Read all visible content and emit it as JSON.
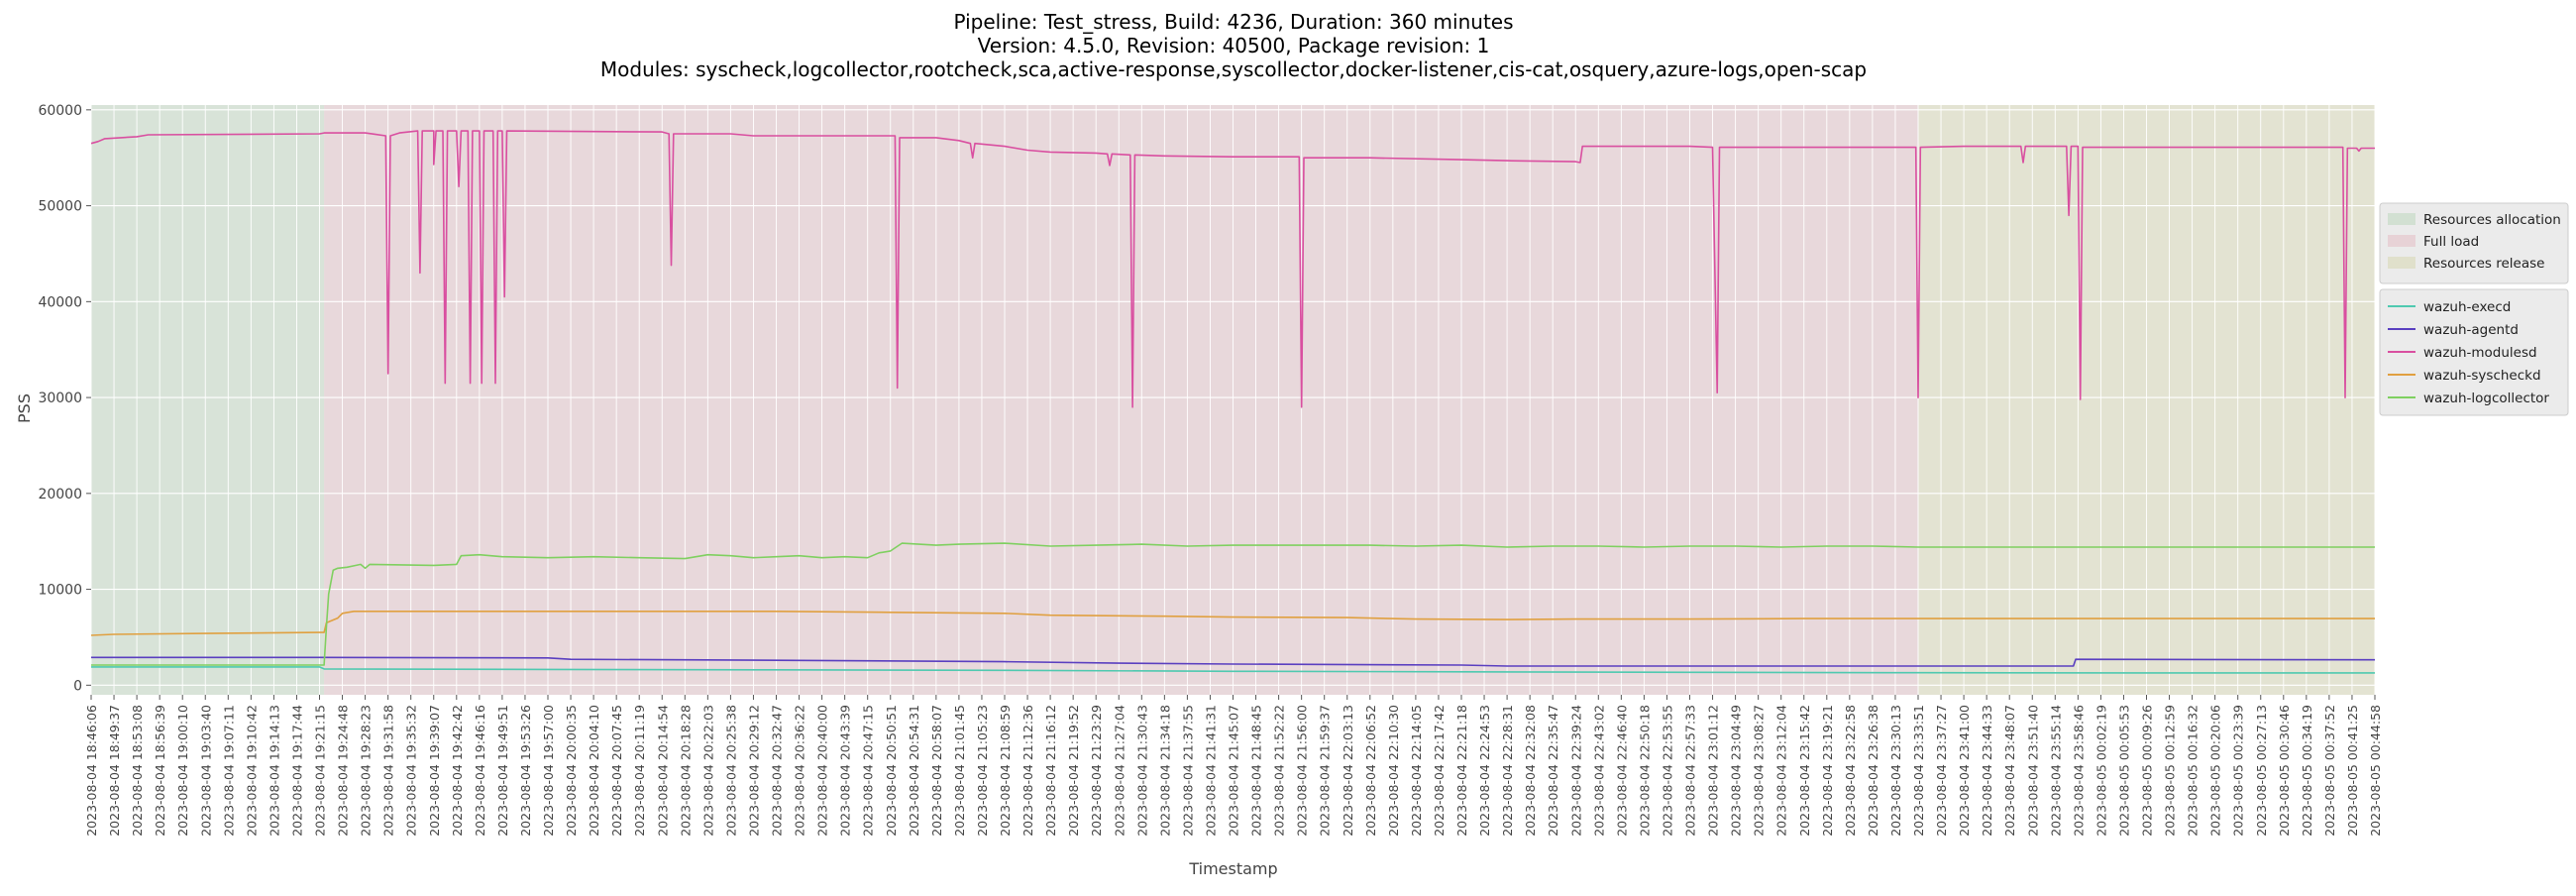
{
  "chart_data": {
    "type": "line",
    "title_lines": [
      "Pipeline: Test_stress, Build: 4236, Duration: 360 minutes",
      "Version: 4.5.0, Revision: 40500, Package revision: 1",
      "Modules: syscheck,logcollector,rootcheck,sca,active-response,syscollector,docker-listener,cis-cat,osquery,azure-logs,open-scap"
    ],
    "xlabel": "Timestamp",
    "ylabel": "PSS",
    "ylim": [
      -1000,
      60500
    ],
    "yticks": [
      0,
      10000,
      20000,
      30000,
      40000,
      50000,
      60000
    ],
    "grid": true,
    "legend_placement": "right",
    "phases": [
      {
        "name": "Resources allocation",
        "start": 0,
        "end": 0.102,
        "color": "#c8dcc8"
      },
      {
        "name": "Full load",
        "start": 0.102,
        "end": 0.8,
        "color": "#e6c8cd"
      },
      {
        "name": "Resources release",
        "start": 0.8,
        "end": 1.0,
        "color": "#dcdcbe"
      }
    ],
    "x_tick_labels": [
      "2023-08-04 18:46:06",
      "2023-08-04 18:49:37",
      "2023-08-04 18:53:08",
      "2023-08-04 18:56:39",
      "2023-08-04 19:00:10",
      "2023-08-04 19:03:40",
      "2023-08-04 19:07:11",
      "2023-08-04 19:10:42",
      "2023-08-04 19:14:13",
      "2023-08-04 19:17:44",
      "2023-08-04 19:21:15",
      "2023-08-04 19:24:48",
      "2023-08-04 19:28:23",
      "2023-08-04 19:31:58",
      "2023-08-04 19:35:32",
      "2023-08-04 19:39:07",
      "2023-08-04 19:42:42",
      "2023-08-04 19:46:16",
      "2023-08-04 19:49:51",
      "2023-08-04 19:53:26",
      "2023-08-04 19:57:00",
      "2023-08-04 20:00:35",
      "2023-08-04 20:04:10",
      "2023-08-04 20:07:45",
      "2023-08-04 20:11:19",
      "2023-08-04 20:14:54",
      "2023-08-04 20:18:28",
      "2023-08-04 20:22:03",
      "2023-08-04 20:25:38",
      "2023-08-04 20:29:12",
      "2023-08-04 20:32:47",
      "2023-08-04 20:36:22",
      "2023-08-04 20:40:00",
      "2023-08-04 20:43:39",
      "2023-08-04 20:47:15",
      "2023-08-04 20:50:51",
      "2023-08-04 20:54:31",
      "2023-08-04 20:58:07",
      "2023-08-04 21:01:45",
      "2023-08-04 21:05:23",
      "2023-08-04 21:08:59",
      "2023-08-04 21:12:36",
      "2023-08-04 21:16:12",
      "2023-08-04 21:19:52",
      "2023-08-04 21:23:29",
      "2023-08-04 21:27:04",
      "2023-08-04 21:30:43",
      "2023-08-04 21:34:18",
      "2023-08-04 21:37:55",
      "2023-08-04 21:41:31",
      "2023-08-04 21:45:07",
      "2023-08-04 21:48:45",
      "2023-08-04 21:52:22",
      "2023-08-04 21:56:00",
      "2023-08-04 21:59:37",
      "2023-08-04 22:03:13",
      "2023-08-04 22:06:52",
      "2023-08-04 22:10:30",
      "2023-08-04 22:14:05",
      "2023-08-04 22:17:42",
      "2023-08-04 22:21:18",
      "2023-08-04 22:24:53",
      "2023-08-04 22:28:31",
      "2023-08-04 22:32:08",
      "2023-08-04 22:35:47",
      "2023-08-04 22:39:24",
      "2023-08-04 22:43:02",
      "2023-08-04 22:46:40",
      "2023-08-04 22:50:18",
      "2023-08-04 22:53:55",
      "2023-08-04 22:57:33",
      "2023-08-04 23:01:12",
      "2023-08-04 23:04:49",
      "2023-08-04 23:08:27",
      "2023-08-04 23:12:04",
      "2023-08-04 23:15:42",
      "2023-08-04 23:19:21",
      "2023-08-04 23:22:58",
      "2023-08-04 23:26:38",
      "2023-08-04 23:30:13",
      "2023-08-04 23:33:51",
      "2023-08-04 23:37:27",
      "2023-08-04 23:41:00",
      "2023-08-04 23:44:33",
      "2023-08-04 23:48:07",
      "2023-08-04 23:51:40",
      "2023-08-04 23:55:14",
      "2023-08-04 23:58:46",
      "2023-08-05 00:02:19",
      "2023-08-05 00:05:53",
      "2023-08-05 00:09:26",
      "2023-08-05 00:12:59",
      "2023-08-05 00:16:32",
      "2023-08-05 00:20:06",
      "2023-08-05 00:23:39",
      "2023-08-05 00:27:13",
      "2023-08-05 00:30:46",
      "2023-08-05 00:34:19",
      "2023-08-05 00:37:52",
      "2023-08-05 00:41:25",
      "2023-08-05 00:44:58"
    ],
    "series": [
      {
        "name": "wazuh-execd",
        "color": "#4fc9b0",
        "points": [
          [
            0,
            1900
          ],
          [
            0.1,
            1900
          ],
          [
            0.102,
            1700
          ],
          [
            0.2,
            1650
          ],
          [
            0.3,
            1600
          ],
          [
            0.4,
            1550
          ],
          [
            0.5,
            1450
          ],
          [
            0.6,
            1400
          ],
          [
            0.7,
            1350
          ],
          [
            0.8,
            1300
          ],
          [
            0.9,
            1280
          ],
          [
            1.0,
            1280
          ]
        ]
      },
      {
        "name": "wazuh-agentd",
        "color": "#5a3fc0",
        "points": [
          [
            0,
            2900
          ],
          [
            0.1,
            2900
          ],
          [
            0.2,
            2850
          ],
          [
            0.21,
            2700
          ],
          [
            0.3,
            2600
          ],
          [
            0.4,
            2450
          ],
          [
            0.45,
            2300
          ],
          [
            0.5,
            2200
          ],
          [
            0.6,
            2100
          ],
          [
            0.62,
            2000
          ],
          [
            0.7,
            2000
          ],
          [
            0.8,
            2000
          ],
          [
            0.868,
            2000
          ],
          [
            0.869,
            2700
          ],
          [
            1.0,
            2650
          ]
        ]
      },
      {
        "name": "wazuh-modulesd",
        "color": "#d94fa0",
        "points": [
          [
            0,
            56500
          ],
          [
            0.003,
            56700
          ],
          [
            0.006,
            57000
          ],
          [
            0.02,
            57200
          ],
          [
            0.025,
            57400
          ],
          [
            0.1,
            57500
          ],
          [
            0.102,
            57600
          ],
          [
            0.12,
            57600
          ],
          [
            0.129,
            57300
          ],
          [
            0.13,
            32500
          ],
          [
            0.131,
            57300
          ],
          [
            0.135,
            57600
          ],
          [
            0.143,
            57800
          ],
          [
            0.144,
            43000
          ],
          [
            0.145,
            57800
          ],
          [
            0.15,
            57800
          ],
          [
            0.15,
            54300
          ],
          [
            0.151,
            57800
          ],
          [
            0.154,
            57800
          ],
          [
            0.155,
            31500
          ],
          [
            0.156,
            57800
          ],
          [
            0.16,
            57800
          ],
          [
            0.161,
            52000
          ],
          [
            0.162,
            57800
          ],
          [
            0.165,
            57800
          ],
          [
            0.166,
            31500
          ],
          [
            0.167,
            57800
          ],
          [
            0.17,
            57800
          ],
          [
            0.171,
            31500
          ],
          [
            0.172,
            57800
          ],
          [
            0.176,
            57800
          ],
          [
            0.177,
            31500
          ],
          [
            0.178,
            57800
          ],
          [
            0.18,
            57800
          ],
          [
            0.181,
            40500
          ],
          [
            0.182,
            57800
          ],
          [
            0.25,
            57700
          ],
          [
            0.253,
            57500
          ],
          [
            0.254,
            43800
          ],
          [
            0.255,
            57500
          ],
          [
            0.28,
            57500
          ],
          [
            0.29,
            57300
          ],
          [
            0.35,
            57300
          ],
          [
            0.352,
            57300
          ],
          [
            0.353,
            31000
          ],
          [
            0.354,
            57100
          ],
          [
            0.37,
            57100
          ],
          [
            0.38,
            56800
          ],
          [
            0.385,
            56500
          ],
          [
            0.386,
            55000
          ],
          [
            0.387,
            56500
          ],
          [
            0.4,
            56200
          ],
          [
            0.41,
            55800
          ],
          [
            0.42,
            55600
          ],
          [
            0.44,
            55500
          ],
          [
            0.445,
            55400
          ],
          [
            0.446,
            54200
          ],
          [
            0.447,
            55400
          ],
          [
            0.455,
            55300
          ],
          [
            0.456,
            29000
          ],
          [
            0.457,
            55300
          ],
          [
            0.47,
            55200
          ],
          [
            0.5,
            55100
          ],
          [
            0.52,
            55100
          ],
          [
            0.529,
            55100
          ],
          [
            0.53,
            29000
          ],
          [
            0.531,
            55000
          ],
          [
            0.56,
            55000
          ],
          [
            0.6,
            54800
          ],
          [
            0.62,
            54700
          ],
          [
            0.65,
            54600
          ],
          [
            0.652,
            54500
          ],
          [
            0.653,
            56200
          ],
          [
            0.7,
            56200
          ],
          [
            0.71,
            56100
          ],
          [
            0.712,
            30500
          ],
          [
            0.713,
            56100
          ],
          [
            0.75,
            56100
          ],
          [
            0.79,
            56100
          ],
          [
            0.799,
            56100
          ],
          [
            0.8,
            30000
          ],
          [
            0.801,
            56100
          ],
          [
            0.82,
            56200
          ],
          [
            0.845,
            56200
          ],
          [
            0.846,
            54500
          ],
          [
            0.847,
            56200
          ],
          [
            0.865,
            56200
          ],
          [
            0.866,
            49000
          ],
          [
            0.867,
            56200
          ],
          [
            0.87,
            56200
          ],
          [
            0.871,
            29800
          ],
          [
            0.872,
            56100
          ],
          [
            0.95,
            56100
          ],
          [
            0.986,
            56100
          ],
          [
            0.987,
            30000
          ],
          [
            0.988,
            56000
          ],
          [
            0.992,
            56000
          ],
          [
            0.993,
            55700
          ],
          [
            0.994,
            56000
          ],
          [
            1.0,
            56000
          ]
        ]
      },
      {
        "name": "wazuh-syscheckd",
        "color": "#e0a040",
        "points": [
          [
            0,
            5200
          ],
          [
            0.01,
            5300
          ],
          [
            0.05,
            5400
          ],
          [
            0.1,
            5500
          ],
          [
            0.102,
            5500
          ],
          [
            0.103,
            6500
          ],
          [
            0.106,
            6800
          ],
          [
            0.108,
            7000
          ],
          [
            0.11,
            7500
          ],
          [
            0.115,
            7700
          ],
          [
            0.2,
            7700
          ],
          [
            0.3,
            7700
          ],
          [
            0.35,
            7600
          ],
          [
            0.4,
            7500
          ],
          [
            0.42,
            7300
          ],
          [
            0.47,
            7200
          ],
          [
            0.5,
            7100
          ],
          [
            0.55,
            7050
          ],
          [
            0.58,
            6900
          ],
          [
            0.62,
            6850
          ],
          [
            0.65,
            6900
          ],
          [
            0.7,
            6900
          ],
          [
            0.75,
            6950
          ],
          [
            0.8,
            6950
          ],
          [
            0.9,
            6950
          ],
          [
            1.0,
            6950
          ]
        ]
      },
      {
        "name": "wazuh-logcollector",
        "color": "#7fd060",
        "points": [
          [
            0,
            2100
          ],
          [
            0.1,
            2100
          ],
          [
            0.102,
            2100
          ],
          [
            0.103,
            6000
          ],
          [
            0.104,
            9500
          ],
          [
            0.106,
            12000
          ],
          [
            0.108,
            12200
          ],
          [
            0.112,
            12300
          ],
          [
            0.116,
            12500
          ],
          [
            0.118,
            12600
          ],
          [
            0.12,
            12200
          ],
          [
            0.122,
            12600
          ],
          [
            0.15,
            12500
          ],
          [
            0.16,
            12600
          ],
          [
            0.162,
            13500
          ],
          [
            0.17,
            13600
          ],
          [
            0.18,
            13400
          ],
          [
            0.2,
            13300
          ],
          [
            0.22,
            13400
          ],
          [
            0.24,
            13300
          ],
          [
            0.26,
            13200
          ],
          [
            0.27,
            13600
          ],
          [
            0.28,
            13500
          ],
          [
            0.29,
            13300
          ],
          [
            0.3,
            13400
          ],
          [
            0.31,
            13500
          ],
          [
            0.32,
            13300
          ],
          [
            0.33,
            13400
          ],
          [
            0.34,
            13300
          ],
          [
            0.345,
            13800
          ],
          [
            0.35,
            14000
          ],
          [
            0.355,
            14800
          ],
          [
            0.37,
            14600
          ],
          [
            0.38,
            14700
          ],
          [
            0.4,
            14800
          ],
          [
            0.42,
            14500
          ],
          [
            0.44,
            14600
          ],
          [
            0.46,
            14700
          ],
          [
            0.48,
            14500
          ],
          [
            0.5,
            14600
          ],
          [
            0.52,
            14600
          ],
          [
            0.54,
            14600
          ],
          [
            0.56,
            14600
          ],
          [
            0.58,
            14500
          ],
          [
            0.6,
            14600
          ],
          [
            0.62,
            14400
          ],
          [
            0.64,
            14500
          ],
          [
            0.66,
            14500
          ],
          [
            0.68,
            14400
          ],
          [
            0.7,
            14500
          ],
          [
            0.72,
            14500
          ],
          [
            0.74,
            14400
          ],
          [
            0.76,
            14500
          ],
          [
            0.78,
            14500
          ],
          [
            0.8,
            14400
          ],
          [
            0.85,
            14400
          ],
          [
            0.9,
            14400
          ],
          [
            0.95,
            14400
          ],
          [
            1.0,
            14400
          ]
        ]
      }
    ]
  }
}
